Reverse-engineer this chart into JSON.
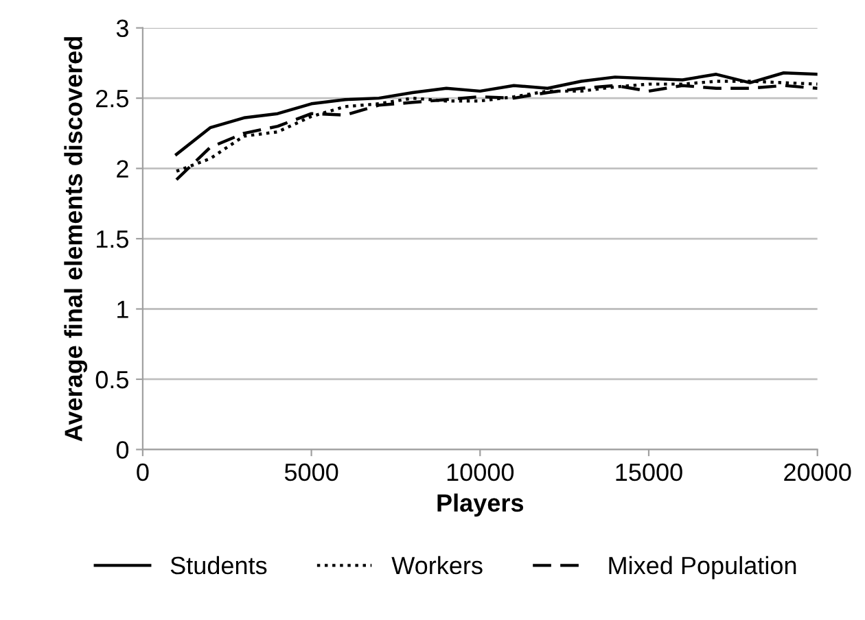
{
  "chart_data": {
    "type": "line",
    "xlabel": "Players",
    "ylabel": "Average final elements discovered",
    "x": [
      1000,
      2000,
      3000,
      4000,
      5000,
      6000,
      7000,
      8000,
      9000,
      10000,
      11000,
      12000,
      13000,
      14000,
      15000,
      16000,
      17000,
      18000,
      19000,
      20000
    ],
    "series": [
      {
        "name": "Students",
        "color": "#000000",
        "line_style": "solid",
        "values": [
          2.1,
          2.29,
          2.36,
          2.39,
          2.46,
          2.49,
          2.5,
          2.54,
          2.57,
          2.55,
          2.59,
          2.57,
          2.62,
          2.65,
          2.64,
          2.63,
          2.67,
          2.61,
          2.68,
          2.67
        ]
      },
      {
        "name": "Workers",
        "color": "#000000",
        "line_style": "dotted",
        "values": [
          1.98,
          2.07,
          2.23,
          2.26,
          2.37,
          2.44,
          2.46,
          2.5,
          2.48,
          2.48,
          2.51,
          2.55,
          2.55,
          2.58,
          2.6,
          2.6,
          2.62,
          2.62,
          2.61,
          2.6
        ]
      },
      {
        "name": "Mixed Population",
        "color": "#000000",
        "line_style": "dashed",
        "values": [
          1.92,
          2.15,
          2.25,
          2.3,
          2.39,
          2.38,
          2.45,
          2.47,
          2.49,
          2.51,
          2.5,
          2.54,
          2.57,
          2.59,
          2.55,
          2.59,
          2.57,
          2.57,
          2.59,
          2.57
        ]
      }
    ],
    "xlim": [
      0,
      20000
    ],
    "xticks": [
      0,
      5000,
      10000,
      15000,
      20000
    ],
    "ylim": [
      0,
      3
    ],
    "yticks": [
      0,
      0.5,
      1,
      1.5,
      2,
      2.5,
      3
    ],
    "grid": "y",
    "legend": "bottom",
    "marker": "none"
  }
}
